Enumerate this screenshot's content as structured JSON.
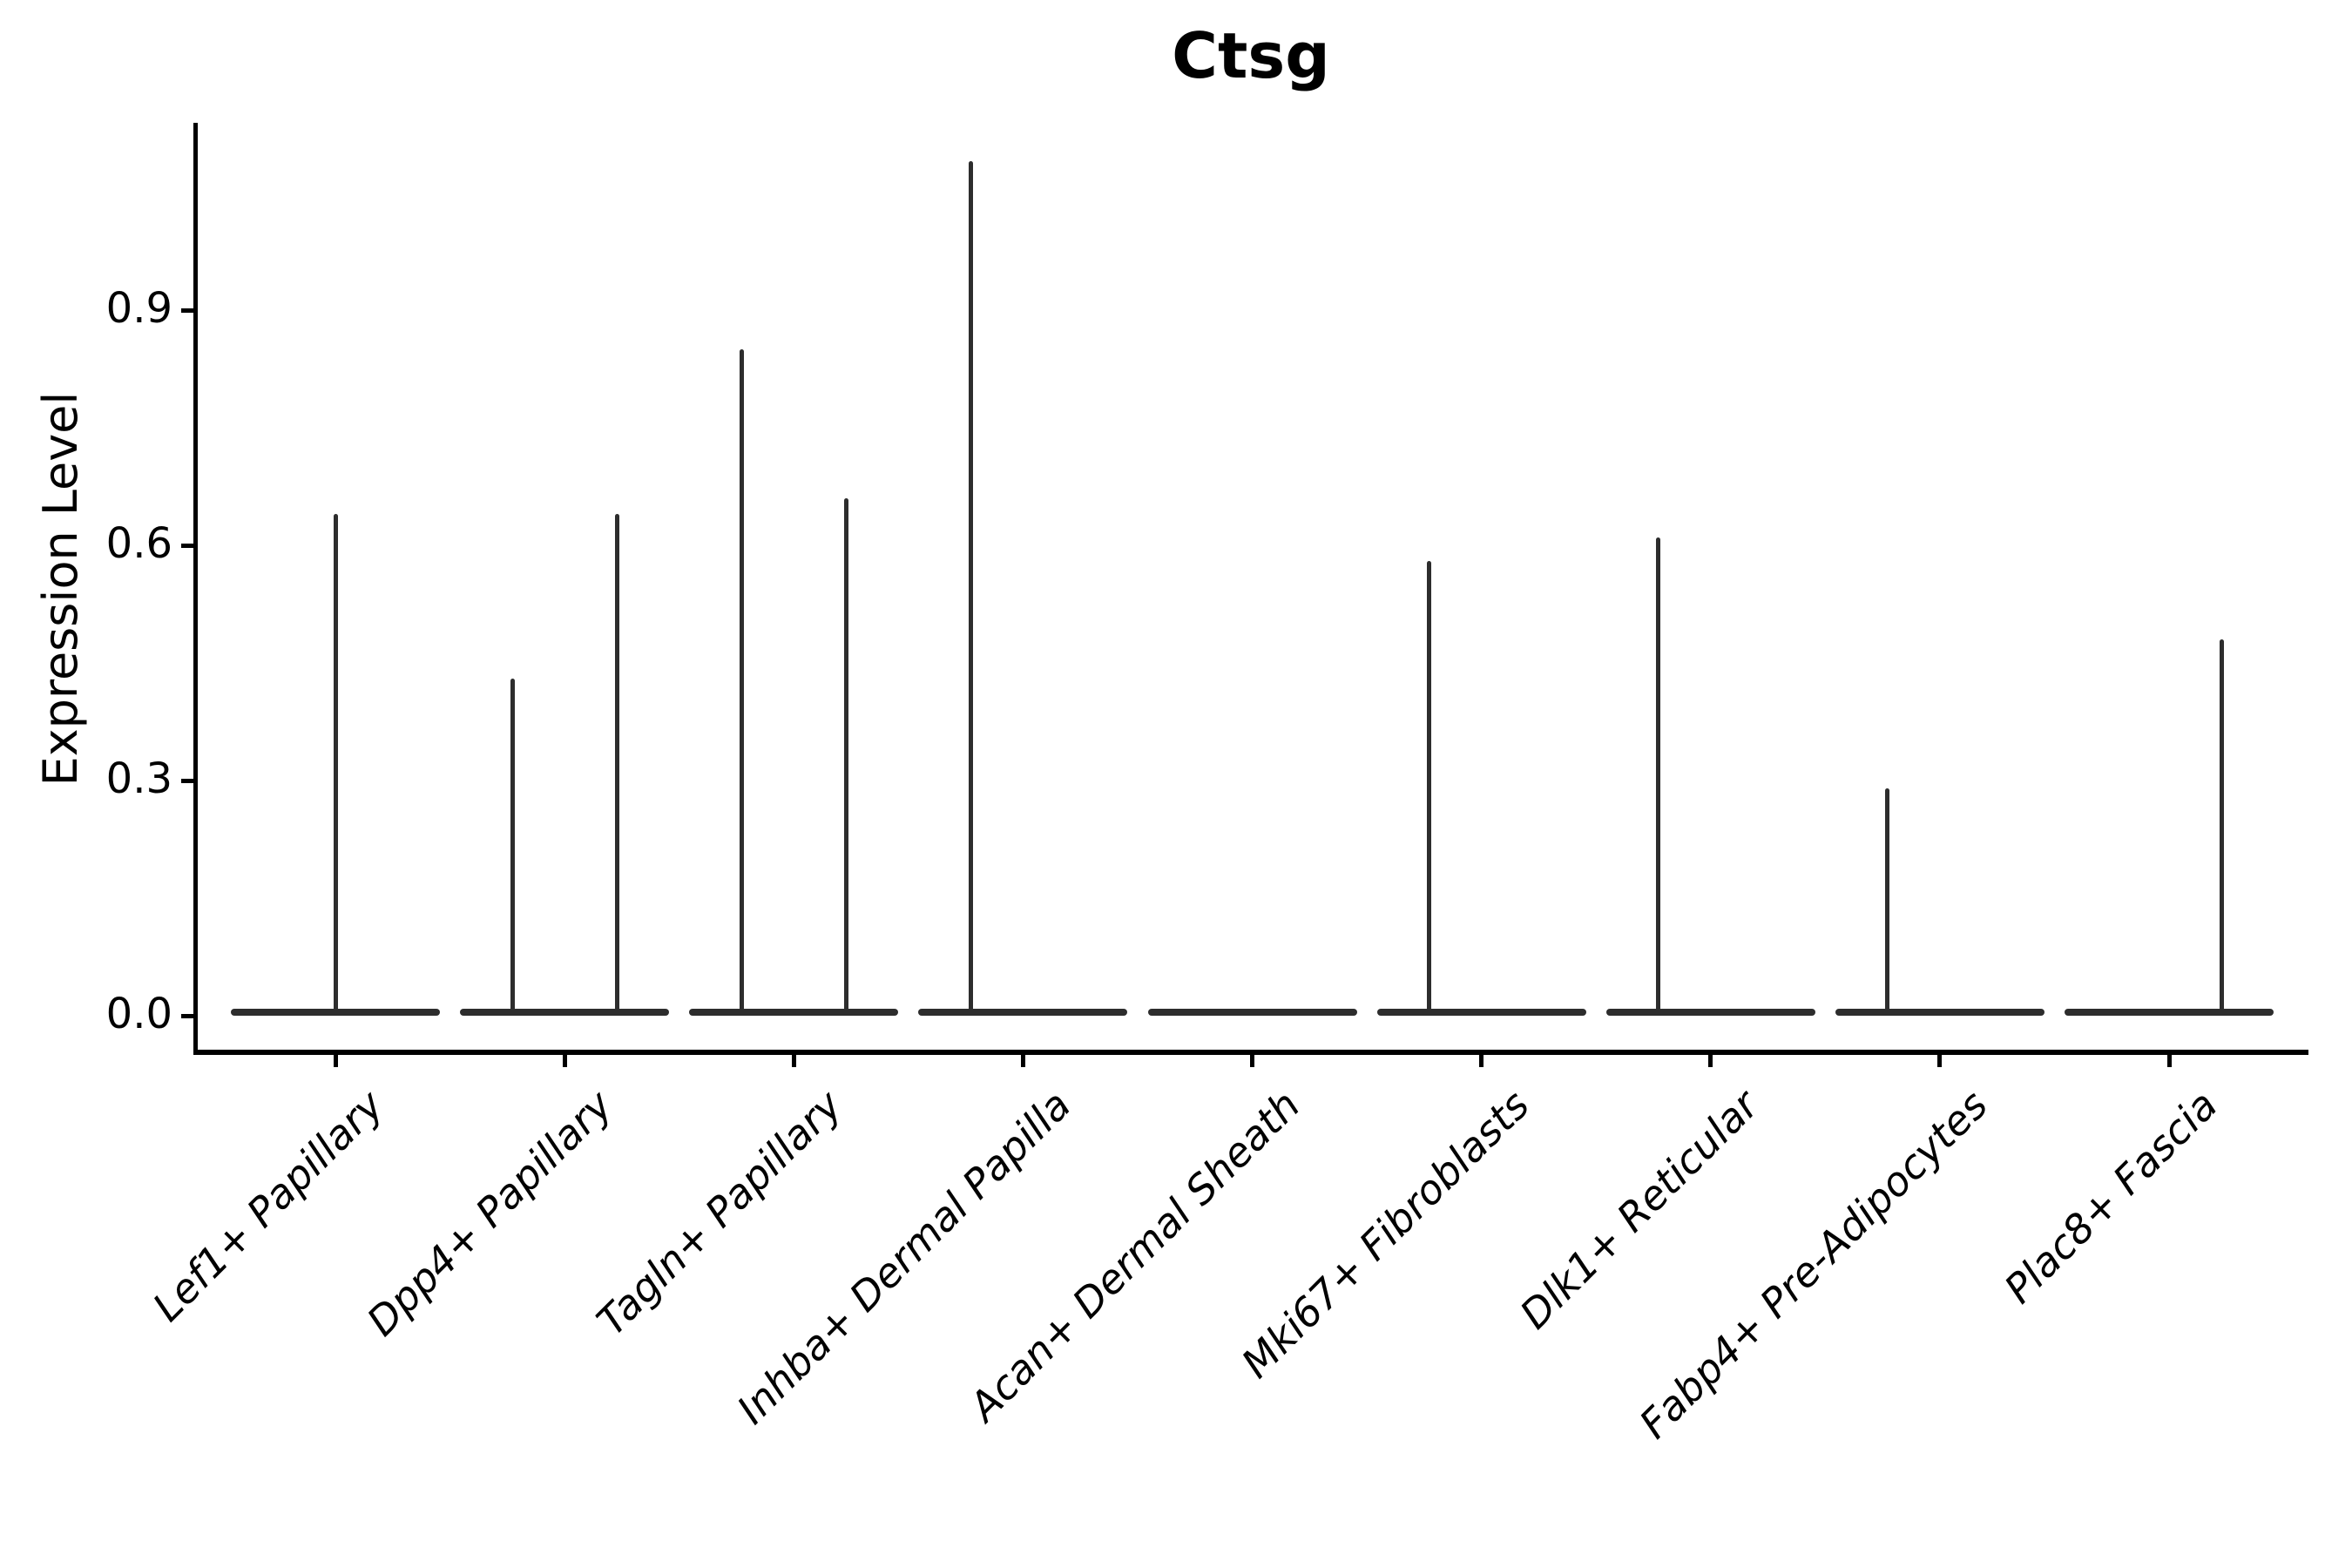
{
  "chart_data": {
    "type": "violin",
    "title": "Ctsg",
    "ylabel": "Expression Level",
    "xlabel": "",
    "yticks": [
      0.0,
      0.3,
      0.6,
      0.9
    ],
    "ytick_labels": [
      "0.0",
      "0.3",
      "0.6",
      "0.9"
    ],
    "ylim": [
      -0.05,
      1.14
    ],
    "grid": false,
    "legend": "none",
    "categories": [
      "Lef1+ Papillary",
      "Dpp4+ Papillary",
      "Tagln+ Papillary",
      "Inhba+ Dermal Papilla",
      "Acan+ Dermal Sheath",
      "Mki67+ Fibroblasts",
      "Dlk1+ Reticular",
      "Fabp4+ Pre-Adipocytes",
      "Plac8+ Fascia"
    ],
    "violins": [
      {
        "category": "Lef1+ Papillary",
        "baseline_value": 0.0,
        "spikes": [
          {
            "pos": "center",
            "offset": 0,
            "max": 0.64
          }
        ]
      },
      {
        "category": "Dpp4+ Papillary",
        "baseline_value": 0.0,
        "spikes": [
          {
            "pos": "left",
            "offset": -60,
            "max": 0.43
          },
          {
            "pos": "right",
            "offset": 60,
            "max": 0.64
          }
        ]
      },
      {
        "category": "Tagln+ Papillary",
        "baseline_value": 0.0,
        "spikes": [
          {
            "pos": "left",
            "offset": -60,
            "max": 0.85
          },
          {
            "pos": "right",
            "offset": 60,
            "max": 0.66
          }
        ]
      },
      {
        "category": "Inhba+ Dermal Papilla",
        "baseline_value": 0.0,
        "spikes": [
          {
            "pos": "left",
            "offset": -60,
            "max": 1.09
          }
        ]
      },
      {
        "category": "Acan+ Dermal Sheath",
        "baseline_value": 0.0,
        "spikes": []
      },
      {
        "category": "Mki67+ Fibroblasts",
        "baseline_value": 0.0,
        "spikes": [
          {
            "pos": "left",
            "offset": -60,
            "max": 0.58
          }
        ]
      },
      {
        "category": "Dlk1+ Reticular",
        "baseline_value": 0.0,
        "spikes": [
          {
            "pos": "left",
            "offset": -60,
            "max": 0.61
          }
        ]
      },
      {
        "category": "Fabp4+ Pre-Adipocytes",
        "baseline_value": 0.0,
        "spikes": [
          {
            "pos": "left",
            "offset": -60,
            "max": 0.29
          }
        ]
      },
      {
        "category": "Plac8+ Fascia",
        "baseline_value": 0.0,
        "spikes": [
          {
            "pos": "right",
            "offset": 60,
            "max": 0.48
          }
        ]
      }
    ],
    "colors": {
      "violin_stroke": "#2d2d2d",
      "axis": "#000000",
      "text": "#000000",
      "background": "#ffffff"
    }
  }
}
